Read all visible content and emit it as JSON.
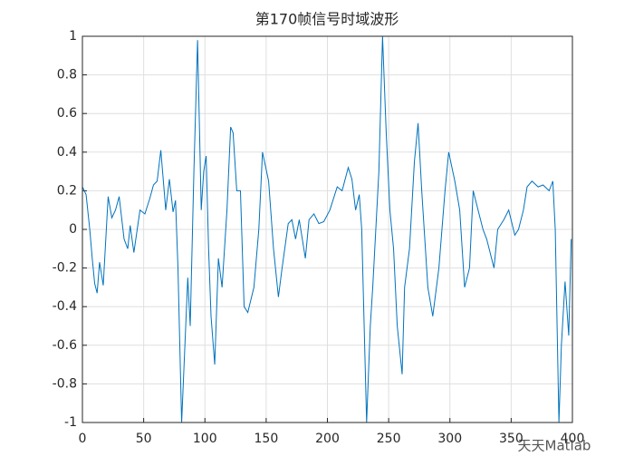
{
  "chart_data": {
    "type": "line",
    "title": "第170帧信号时域波形",
    "watermark": "天天Matlab",
    "x": [
      0,
      3,
      6,
      8,
      10,
      12,
      14,
      17,
      21,
      24,
      27,
      30,
      34,
      37,
      39,
      42,
      47,
      51,
      55,
      58,
      61,
      64,
      67,
      68,
      71,
      74,
      76,
      78,
      81,
      84,
      86,
      88,
      91,
      94,
      97,
      99,
      101,
      103,
      105,
      108,
      111,
      114,
      118,
      121,
      123,
      126,
      129,
      132,
      135,
      140,
      144,
      147,
      152,
      156,
      160,
      163,
      168,
      171,
      174,
      177,
      182,
      185,
      189,
      193,
      197,
      202,
      208,
      212,
      217,
      220,
      223,
      226,
      228,
      232,
      235,
      237,
      242,
      245,
      248,
      251,
      254,
      257,
      261,
      263,
      267,
      271,
      274,
      277,
      282,
      286,
      291,
      296,
      299,
      304,
      308,
      312,
      316,
      319,
      323,
      327,
      330,
      336,
      339,
      344,
      348,
      353,
      356,
      360,
      363,
      367,
      372,
      376,
      381,
      384,
      386,
      389,
      391,
      394,
      397,
      399
    ],
    "series": [
      {
        "name": "signal",
        "color": "#0072bd",
        "values": [
          0.22,
          0.18,
          0.0,
          -0.15,
          -0.28,
          -0.33,
          -0.17,
          -0.29,
          0.17,
          0.06,
          0.1,
          0.17,
          -0.05,
          -0.1,
          0.02,
          -0.12,
          0.1,
          0.08,
          0.16,
          0.23,
          0.25,
          0.41,
          0.18,
          0.1,
          0.26,
          0.09,
          0.15,
          -0.2,
          -1.0,
          -0.55,
          -0.25,
          -0.5,
          0.3,
          0.98,
          0.1,
          0.3,
          0.38,
          -0.1,
          -0.45,
          -0.7,
          -0.15,
          -0.3,
          0.1,
          0.53,
          0.5,
          0.2,
          0.2,
          -0.4,
          -0.43,
          -0.3,
          0.0,
          0.4,
          0.25,
          -0.1,
          -0.35,
          -0.2,
          0.03,
          0.05,
          -0.05,
          0.05,
          -0.15,
          0.05,
          0.08,
          0.03,
          0.04,
          0.1,
          0.22,
          0.2,
          0.32,
          0.26,
          0.1,
          0.18,
          0.0,
          -1.0,
          -0.5,
          -0.3,
          0.3,
          1.0,
          0.5,
          0.1,
          -0.1,
          -0.5,
          -0.75,
          -0.3,
          -0.1,
          0.35,
          0.55,
          0.2,
          -0.3,
          -0.45,
          -0.2,
          0.2,
          0.4,
          0.25,
          0.1,
          -0.3,
          -0.2,
          0.2,
          0.1,
          0.0,
          -0.05,
          -0.2,
          0.0,
          0.05,
          0.1,
          -0.03,
          0.0,
          0.1,
          0.22,
          0.25,
          0.22,
          0.23,
          0.2,
          0.25,
          0.0,
          -1.0,
          -0.6,
          -0.27,
          -0.55,
          -0.05
        ]
      }
    ],
    "xlim": [
      0,
      400
    ],
    "xticks": [
      0,
      50,
      100,
      150,
      200,
      250,
      300,
      350,
      400
    ],
    "ylim": [
      -1,
      1
    ],
    "yticks": [
      -1,
      -0.8,
      -0.6,
      -0.4,
      -0.2,
      0,
      0.2,
      0.4,
      0.6,
      0.8,
      1
    ],
    "grid": true
  }
}
